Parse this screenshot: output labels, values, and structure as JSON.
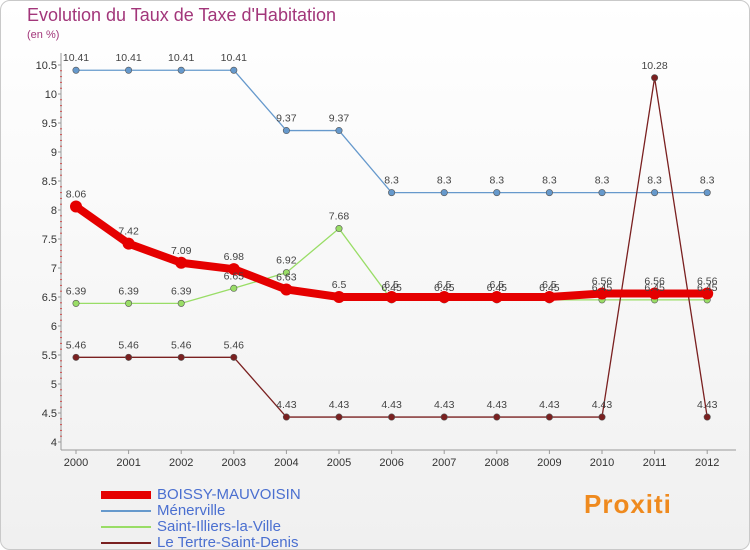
{
  "title": "Evolution du Taux de Taxe d'Habitation",
  "unit_label": "(en %)",
  "logo_text": "Proxiti",
  "chart_data": {
    "type": "line",
    "title": "Evolution du Taux de Taxe d'Habitation",
    "ylabel": "(en %)",
    "categories": [
      "2000",
      "2001",
      "2002",
      "2003",
      "2004",
      "2005",
      "2006",
      "2007",
      "2008",
      "2009",
      "2010",
      "2011",
      "2012"
    ],
    "ylim": [
      4,
      10.5
    ],
    "yticks": [
      "4",
      "4.5",
      "5",
      "5.5",
      "6",
      "6.5",
      "7",
      "7.5",
      "8",
      "8.5",
      "9",
      "9.5",
      "10",
      "10.5"
    ],
    "grid": false,
    "legend_position": "bottom-left",
    "series": [
      {
        "name": "BOISSY-MAUVOISIN",
        "color": "#e50000",
        "values": [
          8.06,
          7.42,
          7.09,
          6.98,
          6.63,
          6.5,
          6.5,
          6.5,
          6.5,
          6.5,
          6.56,
          6.56,
          6.56
        ],
        "labels": [
          "8.06",
          "7.42",
          "7.09",
          "6.98",
          "6.63",
          "6.5",
          "6.5",
          "6.5",
          "6.5",
          "6.5",
          "6.56",
          "6.56",
          "6.56"
        ]
      },
      {
        "name": "Ménerville",
        "color": "#6699cc",
        "values": [
          10.41,
          10.41,
          10.41,
          10.41,
          9.37,
          9.37,
          8.3,
          8.3,
          8.3,
          8.3,
          8.3,
          8.3,
          8.3
        ],
        "labels": [
          "10.41",
          "10.41",
          "10.41",
          "10.41",
          "9.37",
          "9.37",
          "8.3",
          "8.3",
          "8.3",
          "8.3",
          "8.3",
          "8.3",
          "8.3"
        ]
      },
      {
        "name": "Saint-Illiers-la-Ville",
        "color": "#99dd66",
        "values": [
          6.39,
          6.39,
          6.39,
          6.65,
          6.92,
          7.68,
          6.45,
          6.45,
          6.45,
          6.45,
          6.45,
          6.45,
          6.45
        ],
        "labels": [
          "6.39",
          "6.39",
          "6.39",
          "6.65",
          "6.92",
          "7.68",
          "6.45",
          "6.45",
          "6.45",
          "6.45",
          "6.45",
          "6.45",
          "6.45"
        ]
      },
      {
        "name": "Le Tertre-Saint-Denis",
        "color": "#7a2020",
        "values": [
          5.46,
          5.46,
          5.46,
          5.46,
          4.43,
          4.43,
          4.43,
          4.43,
          4.43,
          4.43,
          4.43,
          10.28,
          4.43
        ],
        "labels": [
          "5.46",
          "5.46",
          "5.46",
          "5.46",
          "4.43",
          "4.43",
          "4.43",
          "4.43",
          "4.43",
          "4.43",
          "4.43",
          "10.28",
          "4.43"
        ]
      }
    ]
  }
}
